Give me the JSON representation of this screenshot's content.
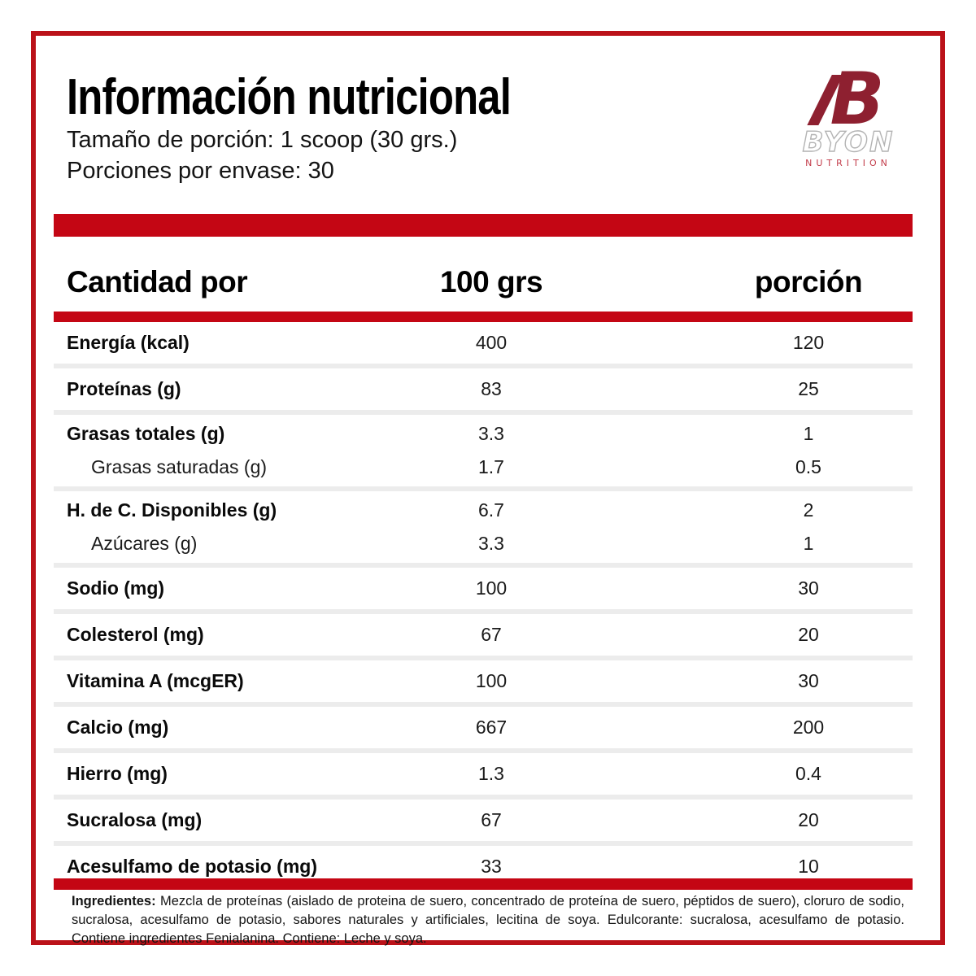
{
  "page": {
    "title": "Información nutricional",
    "serving_size_line": "Tamaño de porción: 1 scoop (30 grs.)",
    "servings_per_container_line": "Porciones por envase: 30"
  },
  "logo": {
    "mark": "B",
    "brand": "BYON",
    "tagline": "NUTRITION"
  },
  "table": {
    "header": {
      "col1": "Cantidad por",
      "col2": "100 grs",
      "col3": "porción"
    },
    "rows": [
      {
        "label": "Energía (kcal)",
        "per100": "400",
        "portion": "120"
      },
      {
        "label": "Proteínas (g)",
        "per100": "83",
        "portion": "25"
      },
      {
        "label": "Grasas totales (g)",
        "per100": "3.3",
        "portion": "1",
        "sub": [
          {
            "label": "Grasas saturadas (g)",
            "per100": "1.7",
            "portion": "0.5"
          }
        ]
      },
      {
        "label": "H. de C. Disponibles (g)",
        "per100": "6.7",
        "portion": "2",
        "sub": [
          {
            "label": "Azúcares (g)",
            "per100": "3.3",
            "portion": "1"
          }
        ]
      },
      {
        "label": "Sodio (mg)",
        "per100": "100",
        "portion": "30"
      },
      {
        "label": "Colesterol (mg)",
        "per100": "67",
        "portion": "20"
      },
      {
        "label": "Vitamina A (mcgER)",
        "per100": "100",
        "portion": "30"
      },
      {
        "label": "Calcio (mg)",
        "per100": "667",
        "portion": "200"
      },
      {
        "label": "Hierro (mg)",
        "per100": "1.3",
        "portion": "0.4"
      },
      {
        "label": "Sucralosa (mg)",
        "per100": "67",
        "portion": "20"
      },
      {
        "label": "Acesulfamo de potasio (mg)",
        "per100": "33",
        "portion": "10"
      }
    ]
  },
  "ingredients": {
    "lead": "Ingredientes:",
    "body": "Mezcla de proteínas (aislado de proteina de suero, concentrado de proteína de suero, péptidos de suero), cloruro de sodio, sucralosa, acesulfamo de potasio, sabores naturales y artificiales, lecitina de soya. Edulcorante: sucralosa, acesulfamo de potasio. Contiene ingredientes Fenialanina. Contiene: Leche y soya."
  },
  "colors": {
    "accent_red": "#c40614",
    "frame_red": "#bb1219",
    "logo_maroon": "#8e2030",
    "logo_outline_gray": "#b3b3b3",
    "logo_nutrition_red": "#c23b49",
    "separator_gray": "#ececec"
  }
}
